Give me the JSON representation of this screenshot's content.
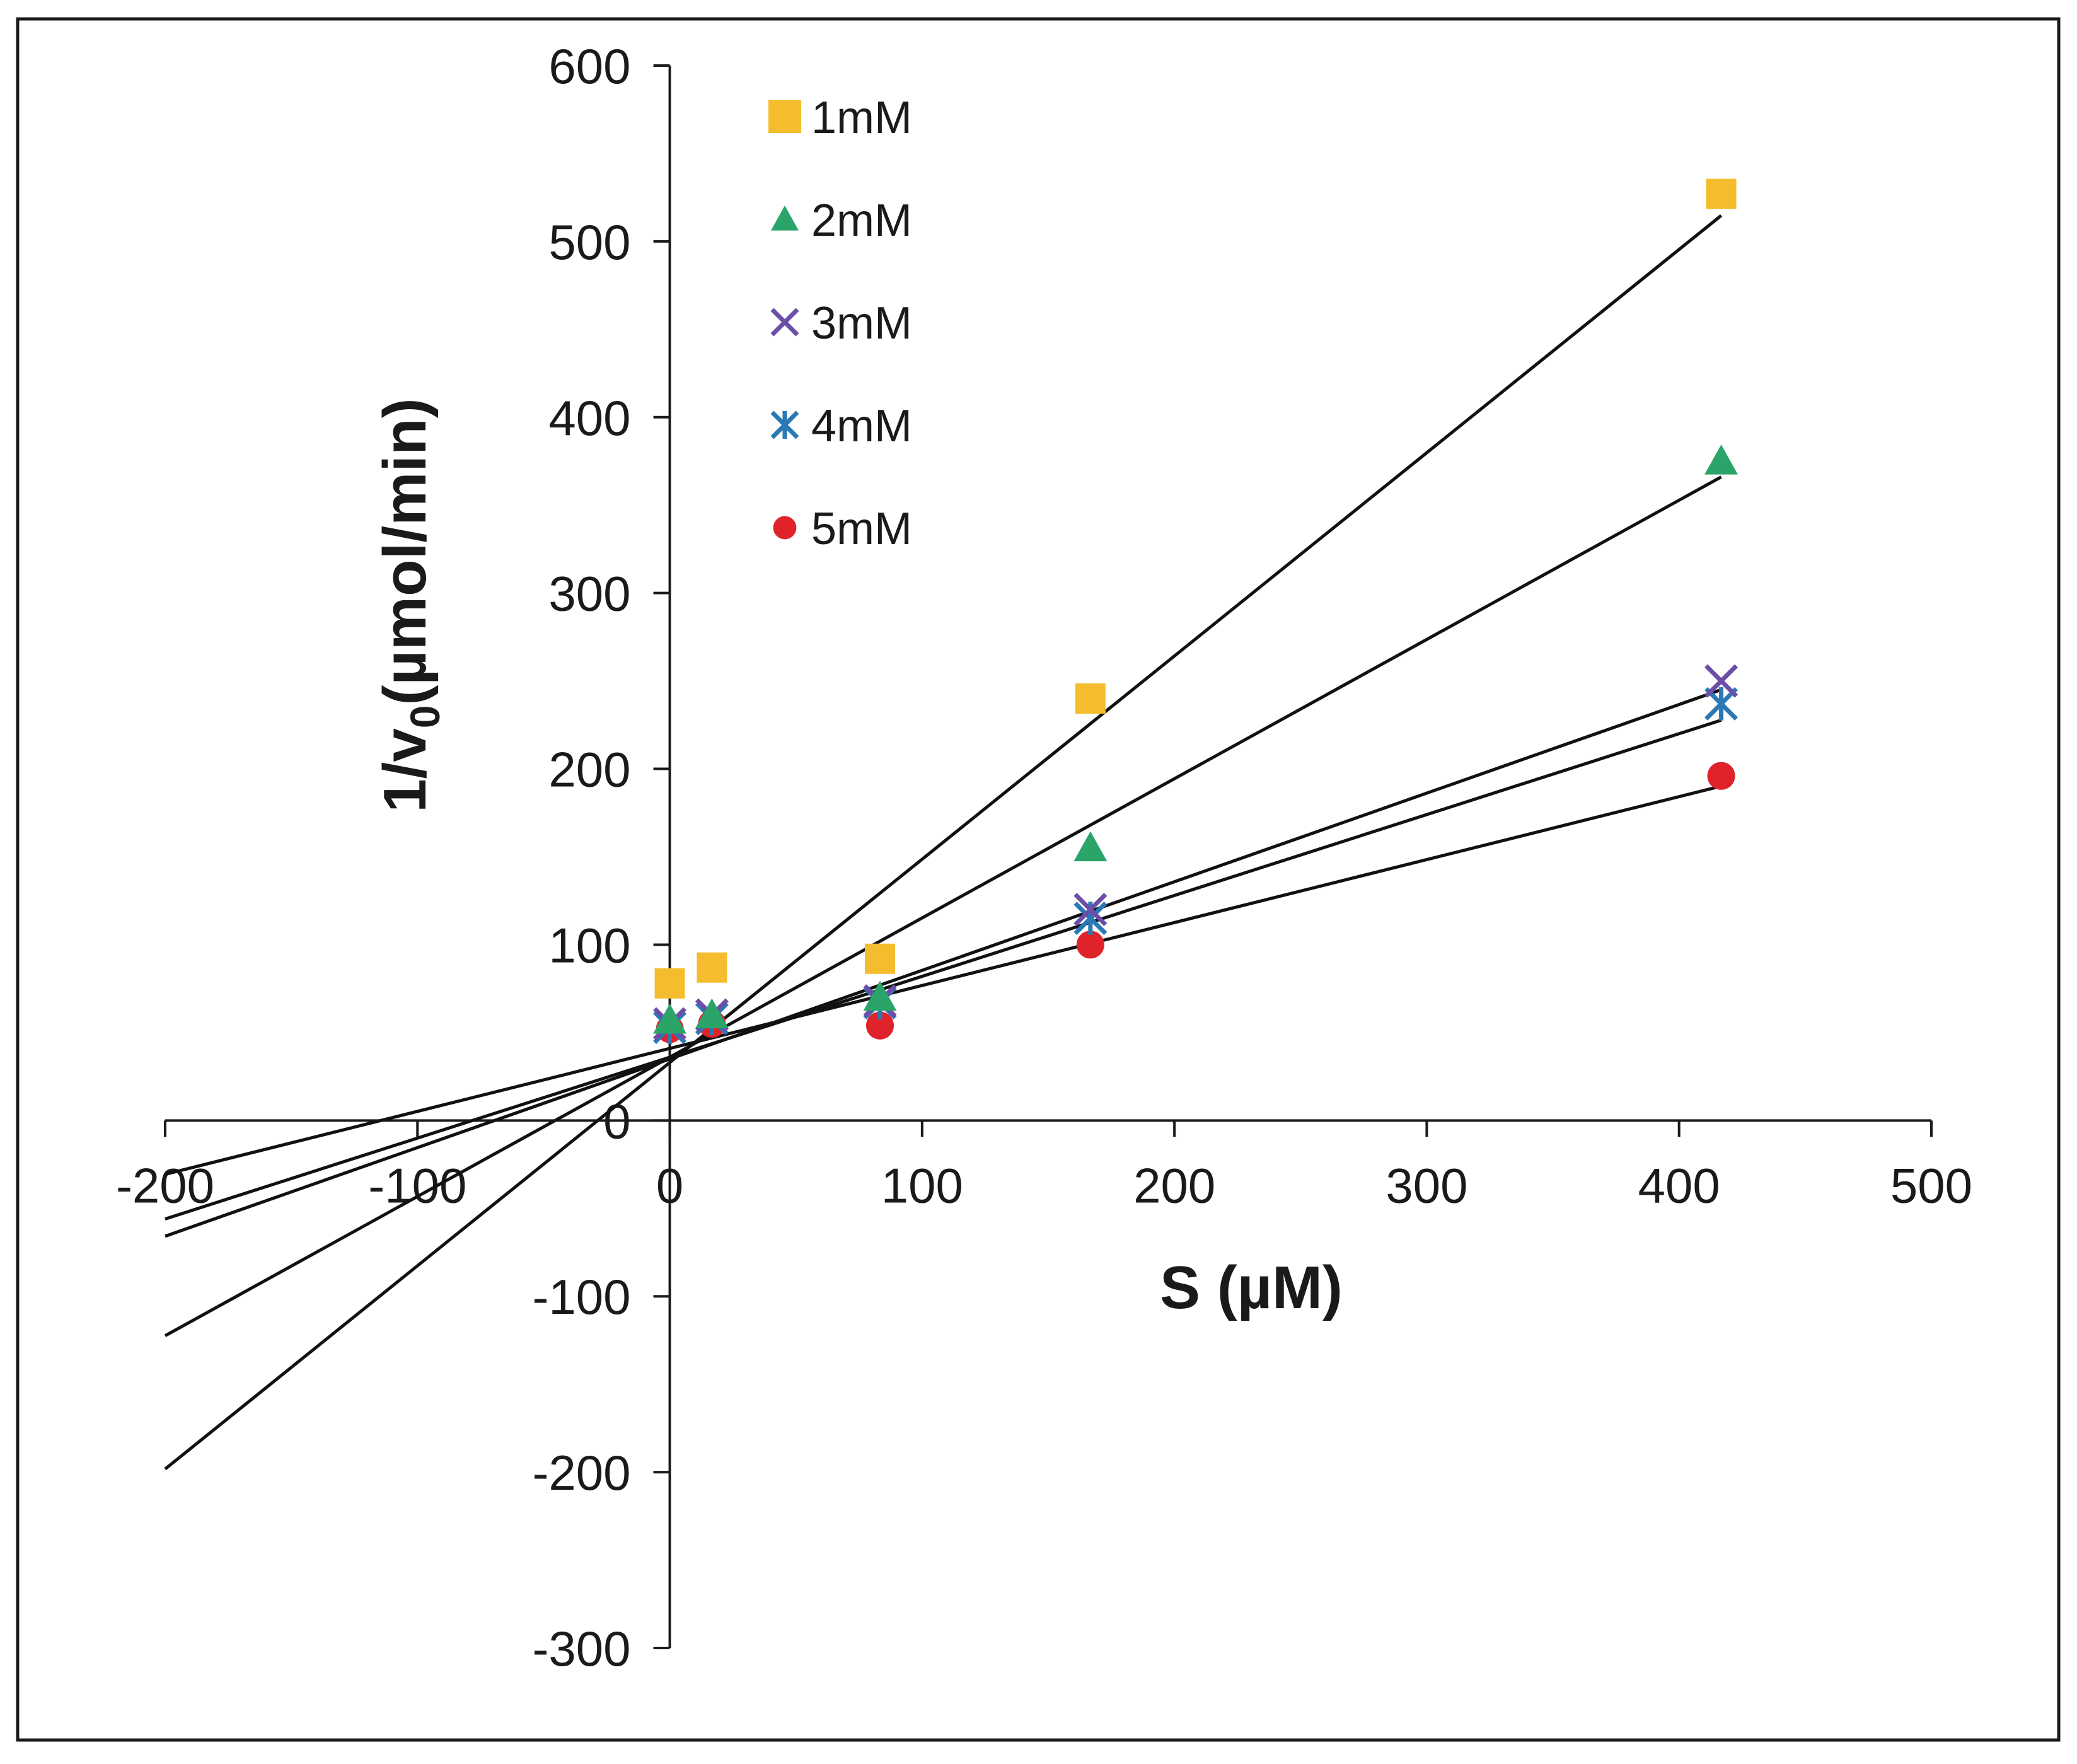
{
  "chart_data": {
    "type": "scatter",
    "title": "",
    "xlabel": "S (µM)",
    "ylabel": "1/v0(µmol/min)",
    "ylabel_main": "1/v",
    "ylabel_sub": "0",
    "ylabel_rest": "(µmol/min)",
    "xlim": [
      -200,
      500
    ],
    "ylim": [
      -300,
      600
    ],
    "x_ticks": [
      -200,
      -100,
      0,
      100,
      200,
      300,
      400,
      500
    ],
    "y_ticks": [
      -300,
      -200,
      -100,
      0,
      100,
      200,
      300,
      400,
      500,
      600
    ],
    "x_tick_labels": [
      "-200",
      "-100",
      "0",
      "100",
      "200",
      "300",
      "400",
      "500"
    ],
    "y_tick_labels": [
      "-300",
      "-200",
      "-100",
      "0",
      "100",
      "200",
      "300",
      "400",
      "500",
      "600"
    ],
    "grid": false,
    "legend_position": "top-left",
    "x": [
      0,
      16.7,
      83.3,
      166.7,
      416.7
    ],
    "trendline_range": [
      -200,
      416.7
    ],
    "series": [
      {
        "name": "1mM",
        "label": "1mM",
        "marker": "square",
        "color": "#f5bd2e",
        "values": [
          78,
          87,
          92,
          240,
          527
        ],
        "trend": {
          "slope": 1.156,
          "intercept": 33
        }
      },
      {
        "name": "2mM",
        "label": "2mM",
        "marker": "triangle",
        "color": "#2ba46a",
        "values": [
          57,
          60,
          70,
          155,
          375
        ],
        "trend": {
          "slope": 0.792,
          "intercept": 36
        }
      },
      {
        "name": "3mM",
        "label": "3mM",
        "marker": "x",
        "color": "#6c4ea8",
        "values": [
          55,
          60,
          68,
          120,
          250
        ],
        "trend": {
          "slope": 0.504,
          "intercept": 35
        }
      },
      {
        "name": "4mM",
        "label": "4mM",
        "marker": "star",
        "color": "#2a79b5",
        "values": [
          53,
          58,
          67,
          115,
          237
        ],
        "trend": {
          "slope": 0.46,
          "intercept": 36
        }
      },
      {
        "name": "5mM",
        "label": "5mM",
        "marker": "circle",
        "color": "#e0222b",
        "values": [
          52,
          55,
          54,
          100,
          196
        ],
        "trend": {
          "slope": 0.358,
          "intercept": 41
        }
      }
    ]
  }
}
